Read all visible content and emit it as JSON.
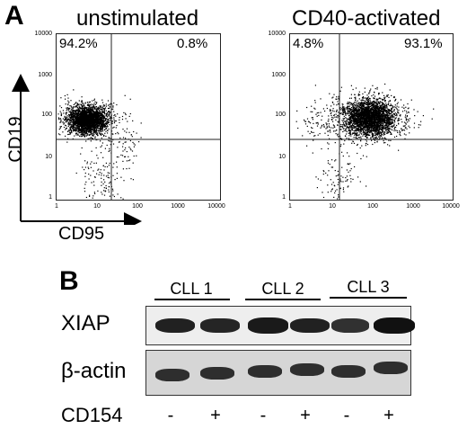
{
  "panel_a": {
    "letter": "A",
    "y_axis_label": "CD19",
    "x_axis_label": "CD95",
    "tick_labels": [
      "1",
      "10",
      "100",
      "1000",
      "10000"
    ],
    "plots": [
      {
        "title": "unstimulated",
        "quadrants": {
          "upper_left": "94.2%",
          "upper_right": "0.8%"
        }
      },
      {
        "title": "CD40-activated",
        "quadrants": {
          "upper_left": "4.8%",
          "upper_right": "93.1%"
        }
      }
    ]
  },
  "panel_b": {
    "letter": "B",
    "samples": [
      "CLL 1",
      "CLL 2",
      "CLL 3"
    ],
    "proteins": [
      "XIAP",
      "β-actin"
    ],
    "treatment_label": "CD154",
    "treatment_signs": [
      "-",
      "+",
      "-",
      "+",
      "-",
      "+"
    ],
    "xiap_band_intensity": [
      0.85,
      0.8,
      0.9,
      0.85,
      0.7,
      1.0
    ]
  }
}
